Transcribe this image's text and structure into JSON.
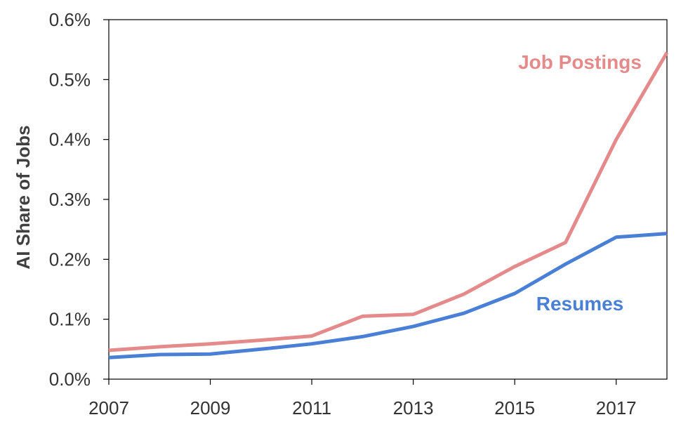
{
  "chart_data": {
    "type": "line",
    "title": "",
    "xlabel": "",
    "ylabel": "AI Share of Jobs",
    "xlim": [
      2007,
      2018
    ],
    "ylim": [
      0,
      0.6
    ],
    "x_ticks": [
      "2007",
      "2009",
      "2011",
      "2013",
      "2015",
      "2017"
    ],
    "y_ticks": [
      "0.0%",
      "0.1%",
      "0.2%",
      "0.3%",
      "0.4%",
      "0.5%",
      "0.6%"
    ],
    "grid": false,
    "x": [
      2007,
      2008,
      2009,
      2010,
      2011,
      2012,
      2013,
      2014,
      2015,
      2016,
      2017,
      2018
    ],
    "series": [
      {
        "name": "Job Postings",
        "color": "#e58a8a",
        "values": [
          0.048,
          0.054,
          0.059,
          0.065,
          0.072,
          0.105,
          0.108,
          0.142,
          0.188,
          0.228,
          0.4,
          0.545
        ]
      },
      {
        "name": "Resumes",
        "color": "#4a7fd6",
        "values": [
          0.036,
          0.041,
          0.042,
          0.05,
          0.059,
          0.071,
          0.088,
          0.11,
          0.143,
          0.192,
          0.237,
          0.243
        ]
      }
    ]
  }
}
